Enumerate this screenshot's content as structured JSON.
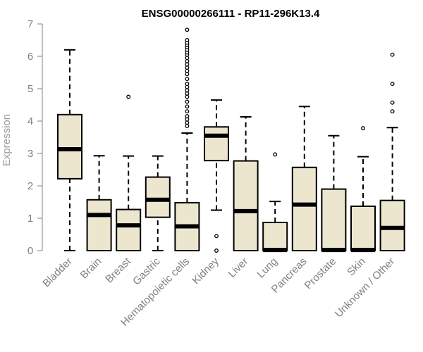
{
  "chart_data": {
    "type": "boxplot",
    "title": "ENSG00000266111 - RP11-296K13.4",
    "ylabel": "Expression",
    "xlabel": "",
    "ylim": [
      0,
      7
    ],
    "yticks": [
      0,
      1,
      2,
      3,
      4,
      5,
      6,
      7
    ],
    "grid": false,
    "colors": {
      "box_fill": "#ede6cf",
      "stroke": "#000000",
      "axis": "#808080",
      "title": "#000000"
    },
    "categories": [
      "Bladder",
      "Brain",
      "Breast",
      "Gastric",
      "Hematopoietic cells",
      "Kidney",
      "Liver",
      "Lung",
      "Pancreas",
      "Prostate",
      "Skin",
      "Unknown / Other"
    ],
    "boxes": [
      {
        "name": "Bladder",
        "min": 0.0,
        "q1": 2.22,
        "median": 3.13,
        "q3": 4.2,
        "max": 6.2,
        "outliers": []
      },
      {
        "name": "Brain",
        "min": 0.0,
        "q1": 0.0,
        "median": 1.1,
        "q3": 1.57,
        "max": 2.93,
        "outliers": []
      },
      {
        "name": "Breast",
        "min": 0.0,
        "q1": 0.0,
        "median": 0.78,
        "q3": 1.27,
        "max": 2.92,
        "outliers": [
          4.75
        ]
      },
      {
        "name": "Gastric",
        "min": 0.0,
        "q1": 1.03,
        "median": 1.57,
        "q3": 2.27,
        "max": 2.92,
        "outliers": []
      },
      {
        "name": "Hematopoietic cells",
        "min": 0.0,
        "q1": 0.0,
        "median": 0.75,
        "q3": 1.48,
        "max": 3.63,
        "outliers": [
          3.85,
          3.95,
          4.05,
          4.15,
          4.3,
          4.45,
          4.6,
          4.75,
          4.85,
          4.95,
          5.05,
          5.15,
          5.3,
          5.45,
          5.55,
          5.65,
          5.75,
          5.85,
          5.95,
          6.05,
          6.12,
          6.2,
          6.28,
          6.35,
          6.42,
          6.5,
          6.82
        ]
      },
      {
        "name": "Kidney",
        "min": 1.25,
        "q1": 2.78,
        "median": 3.55,
        "q3": 3.82,
        "max": 4.65,
        "outliers": [
          0.45,
          0.0
        ]
      },
      {
        "name": "Liver",
        "min": 0.0,
        "q1": 0.0,
        "median": 1.22,
        "q3": 2.77,
        "max": 4.13,
        "outliers": []
      },
      {
        "name": "Lung",
        "min": 0.0,
        "q1": 0.0,
        "median": 0.02,
        "q3": 0.87,
        "max": 1.52,
        "outliers": [
          2.97
        ]
      },
      {
        "name": "Pancreas",
        "min": 0.0,
        "q1": 0.0,
        "median": 1.42,
        "q3": 2.57,
        "max": 4.45,
        "outliers": []
      },
      {
        "name": "Prostate",
        "min": 0.0,
        "q1": 0.0,
        "median": 0.02,
        "q3": 1.9,
        "max": 3.55,
        "outliers": []
      },
      {
        "name": "Skin",
        "min": 0.0,
        "q1": 0.0,
        "median": 0.02,
        "q3": 1.37,
        "max": 2.9,
        "outliers": [
          3.78
        ]
      },
      {
        "name": "Unknown / Other",
        "min": 0.0,
        "q1": 0.0,
        "median": 0.7,
        "q3": 1.55,
        "max": 3.8,
        "outliers": [
          4.3,
          4.57,
          5.15,
          6.05
        ]
      }
    ]
  }
}
